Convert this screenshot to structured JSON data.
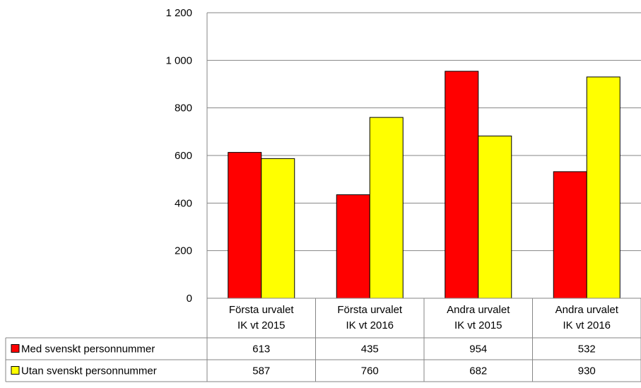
{
  "chart_data": {
    "type": "bar",
    "categories": [
      [
        "Första urvalet",
        "IK vt 2015"
      ],
      [
        "Första urvalet",
        "IK vt 2016"
      ],
      [
        "Andra urvalet",
        "IK vt 2015"
      ],
      [
        "Andra urvalet",
        "IK vt 2016"
      ]
    ],
    "series": [
      {
        "name": "Med svenskt personnummer",
        "color": "#ff0000",
        "values": [
          613,
          435,
          954,
          532
        ]
      },
      {
        "name": "Utan svenskt personnummer",
        "color": "#ffff00",
        "values": [
          587,
          760,
          682,
          930
        ]
      }
    ],
    "yticks": [
      "0",
      "200",
      "400",
      "600",
      "800",
      "1 000",
      "1 200"
    ],
    "ylim": [
      0,
      1200
    ],
    "grid": true,
    "legend": "data-table-left",
    "data_table": true
  }
}
